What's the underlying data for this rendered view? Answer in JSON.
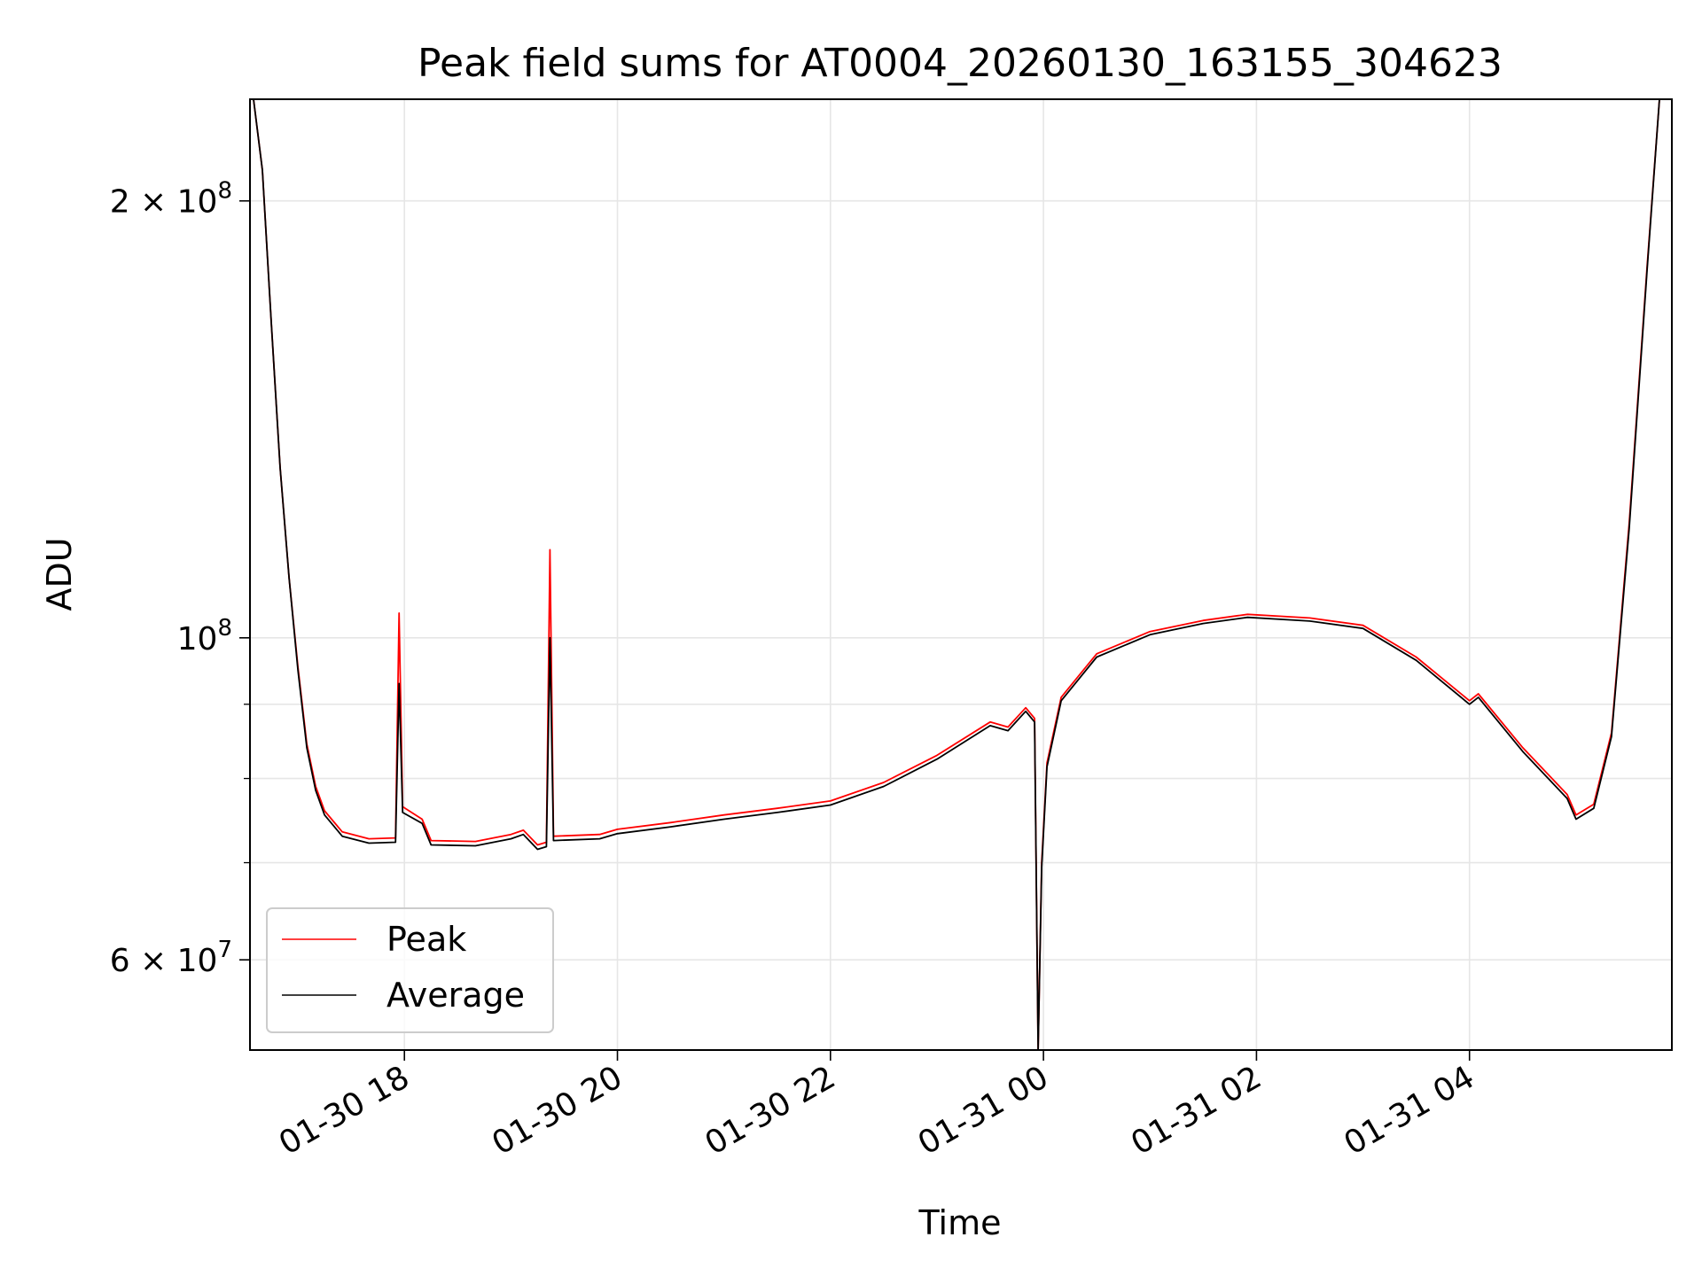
{
  "chart_data": {
    "type": "line",
    "title": "Peak field sums for AT0004_20260130_163155_304623",
    "xlabel": "Time",
    "ylabel": "ADU",
    "yscale": "log",
    "xlim": [
      "2026-01-30T16:33",
      "2026-01-31T05:54"
    ],
    "ylim": [
      52000000,
      235000000
    ],
    "grid": true,
    "legend": {
      "placement": "lower-left"
    },
    "x_ticks": [
      {
        "value": "2026-01-30T18:00",
        "label": "01-30 18"
      },
      {
        "value": "2026-01-30T20:00",
        "label": "01-30 20"
      },
      {
        "value": "2026-01-30T22:00",
        "label": "01-30 22"
      },
      {
        "value": "2026-01-31T00:00",
        "label": "01-31 00"
      },
      {
        "value": "2026-01-31T02:00",
        "label": "01-31 02"
      },
      {
        "value": "2026-01-31T04:00",
        "label": "01-31 04"
      }
    ],
    "y_ticks": [
      {
        "value": 200000000,
        "mantissa": "2",
        "exponent": "8"
      },
      {
        "value": 100000000,
        "mantissa": "",
        "exponent": "8"
      },
      {
        "value": 60000000,
        "mantissa": "6",
        "exponent": "7"
      }
    ],
    "y_minor_ticks": [
      70000000,
      80000000,
      90000000
    ],
    "series": [
      {
        "name": "Peak",
        "color": "#ff0000",
        "points": [
          [
            "2026-01-30T16:35",
            235000000
          ],
          [
            "2026-01-30T16:40",
            210000000
          ],
          [
            "2026-01-30T16:45",
            165000000
          ],
          [
            "2026-01-30T16:50",
            131000000
          ],
          [
            "2026-01-30T16:55",
            110000000
          ],
          [
            "2026-01-30T17:00",
            95500000
          ],
          [
            "2026-01-30T17:05",
            84500000
          ],
          [
            "2026-01-30T17:10",
            79000000
          ],
          [
            "2026-01-30T17:15",
            76000000
          ],
          [
            "2026-01-30T17:25",
            73500000
          ],
          [
            "2026-01-30T17:40",
            72700000
          ],
          [
            "2026-01-30T17:55",
            72800000
          ],
          [
            "2026-01-30T17:57",
            104000000
          ],
          [
            "2026-01-30T17:59",
            76500000
          ],
          [
            "2026-01-30T18:10",
            75000000
          ],
          [
            "2026-01-30T18:15",
            72500000
          ],
          [
            "2026-01-30T18:40",
            72400000
          ],
          [
            "2026-01-30T19:00",
            73200000
          ],
          [
            "2026-01-30T19:07",
            73700000
          ],
          [
            "2026-01-30T19:15",
            72000000
          ],
          [
            "2026-01-30T19:20",
            72300000
          ],
          [
            "2026-01-30T19:22",
            115000000
          ],
          [
            "2026-01-30T19:24",
            73000000
          ],
          [
            "2026-01-30T19:50",
            73200000
          ],
          [
            "2026-01-30T20:00",
            73800000
          ],
          [
            "2026-01-30T20:30",
            74600000
          ],
          [
            "2026-01-30T21:00",
            75500000
          ],
          [
            "2026-01-30T21:30",
            76300000
          ],
          [
            "2026-01-30T22:00",
            77200000
          ],
          [
            "2026-01-30T22:30",
            79500000
          ],
          [
            "2026-01-30T23:00",
            83000000
          ],
          [
            "2026-01-30T23:30",
            87500000
          ],
          [
            "2026-01-30T23:40",
            86800000
          ],
          [
            "2026-01-30T23:50",
            89500000
          ],
          [
            "2026-01-30T23:55",
            88000000
          ],
          [
            "2026-01-30T23:57",
            52000000
          ],
          [
            "2026-01-30T23:59",
            70000000
          ],
          [
            "2026-01-31T00:02",
            82000000
          ],
          [
            "2026-01-31T00:10",
            91000000
          ],
          [
            "2026-01-31T00:30",
            97500000
          ],
          [
            "2026-01-31T01:00",
            101000000
          ],
          [
            "2026-01-31T01:30",
            102800000
          ],
          [
            "2026-01-31T01:55",
            103800000
          ],
          [
            "2026-01-31T02:30",
            103200000
          ],
          [
            "2026-01-31T03:00",
            102000000
          ],
          [
            "2026-01-31T03:30",
            97000000
          ],
          [
            "2026-01-31T04:00",
            90500000
          ],
          [
            "2026-01-31T04:05",
            91500000
          ],
          [
            "2026-01-31T04:30",
            84000000
          ],
          [
            "2026-01-31T04:55",
            78000000
          ],
          [
            "2026-01-31T05:00",
            75500000
          ],
          [
            "2026-01-31T05:10",
            76800000
          ],
          [
            "2026-01-31T05:20",
            86000000
          ],
          [
            "2026-01-31T05:30",
            120000000
          ],
          [
            "2026-01-31T05:40",
            180000000
          ],
          [
            "2026-01-31T05:47",
            235000000
          ]
        ]
      },
      {
        "name": "Average",
        "color": "#000000",
        "points": [
          [
            "2026-01-30T16:35",
            235000000
          ],
          [
            "2026-01-30T16:40",
            210000000
          ],
          [
            "2026-01-30T16:45",
            165000000
          ],
          [
            "2026-01-30T16:50",
            131000000
          ],
          [
            "2026-01-30T16:55",
            110000000
          ],
          [
            "2026-01-30T17:00",
            95000000
          ],
          [
            "2026-01-30T17:05",
            84000000
          ],
          [
            "2026-01-30T17:10",
            78500000
          ],
          [
            "2026-01-30T17:15",
            75500000
          ],
          [
            "2026-01-30T17:25",
            73000000
          ],
          [
            "2026-01-30T17:40",
            72200000
          ],
          [
            "2026-01-30T17:55",
            72300000
          ],
          [
            "2026-01-30T17:57",
            93000000
          ],
          [
            "2026-01-30T17:59",
            75800000
          ],
          [
            "2026-01-30T18:10",
            74500000
          ],
          [
            "2026-01-30T18:15",
            72000000
          ],
          [
            "2026-01-30T18:40",
            71900000
          ],
          [
            "2026-01-30T19:00",
            72700000
          ],
          [
            "2026-01-30T19:07",
            73200000
          ],
          [
            "2026-01-30T19:15",
            71500000
          ],
          [
            "2026-01-30T19:20",
            71800000
          ],
          [
            "2026-01-30T19:22",
            100000000
          ],
          [
            "2026-01-30T19:24",
            72500000
          ],
          [
            "2026-01-30T19:50",
            72700000
          ],
          [
            "2026-01-30T20:00",
            73300000
          ],
          [
            "2026-01-30T20:30",
            74100000
          ],
          [
            "2026-01-30T21:00",
            75000000
          ],
          [
            "2026-01-30T21:30",
            75800000
          ],
          [
            "2026-01-30T22:00",
            76700000
          ],
          [
            "2026-01-30T22:30",
            79000000
          ],
          [
            "2026-01-30T23:00",
            82500000
          ],
          [
            "2026-01-30T23:30",
            87000000
          ],
          [
            "2026-01-30T23:40",
            86300000
          ],
          [
            "2026-01-30T23:50",
            89000000
          ],
          [
            "2026-01-30T23:55",
            87500000
          ],
          [
            "2026-01-30T23:57",
            52000000
          ],
          [
            "2026-01-30T23:59",
            69500000
          ],
          [
            "2026-01-31T00:02",
            81500000
          ],
          [
            "2026-01-31T00:10",
            90500000
          ],
          [
            "2026-01-31T00:30",
            97000000
          ],
          [
            "2026-01-31T01:00",
            100500000
          ],
          [
            "2026-01-31T01:30",
            102300000
          ],
          [
            "2026-01-31T01:55",
            103300000
          ],
          [
            "2026-01-31T02:30",
            102700000
          ],
          [
            "2026-01-31T03:00",
            101500000
          ],
          [
            "2026-01-31T03:30",
            96500000
          ],
          [
            "2026-01-31T04:00",
            90000000
          ],
          [
            "2026-01-31T04:05",
            91000000
          ],
          [
            "2026-01-31T04:30",
            83500000
          ],
          [
            "2026-01-31T04:55",
            77500000
          ],
          [
            "2026-01-31T05:00",
            75000000
          ],
          [
            "2026-01-31T05:10",
            76300000
          ],
          [
            "2026-01-31T05:20",
            85500000
          ],
          [
            "2026-01-31T05:30",
            119000000
          ],
          [
            "2026-01-31T05:40",
            179000000
          ],
          [
            "2026-01-31T05:47",
            235000000
          ]
        ]
      }
    ]
  }
}
